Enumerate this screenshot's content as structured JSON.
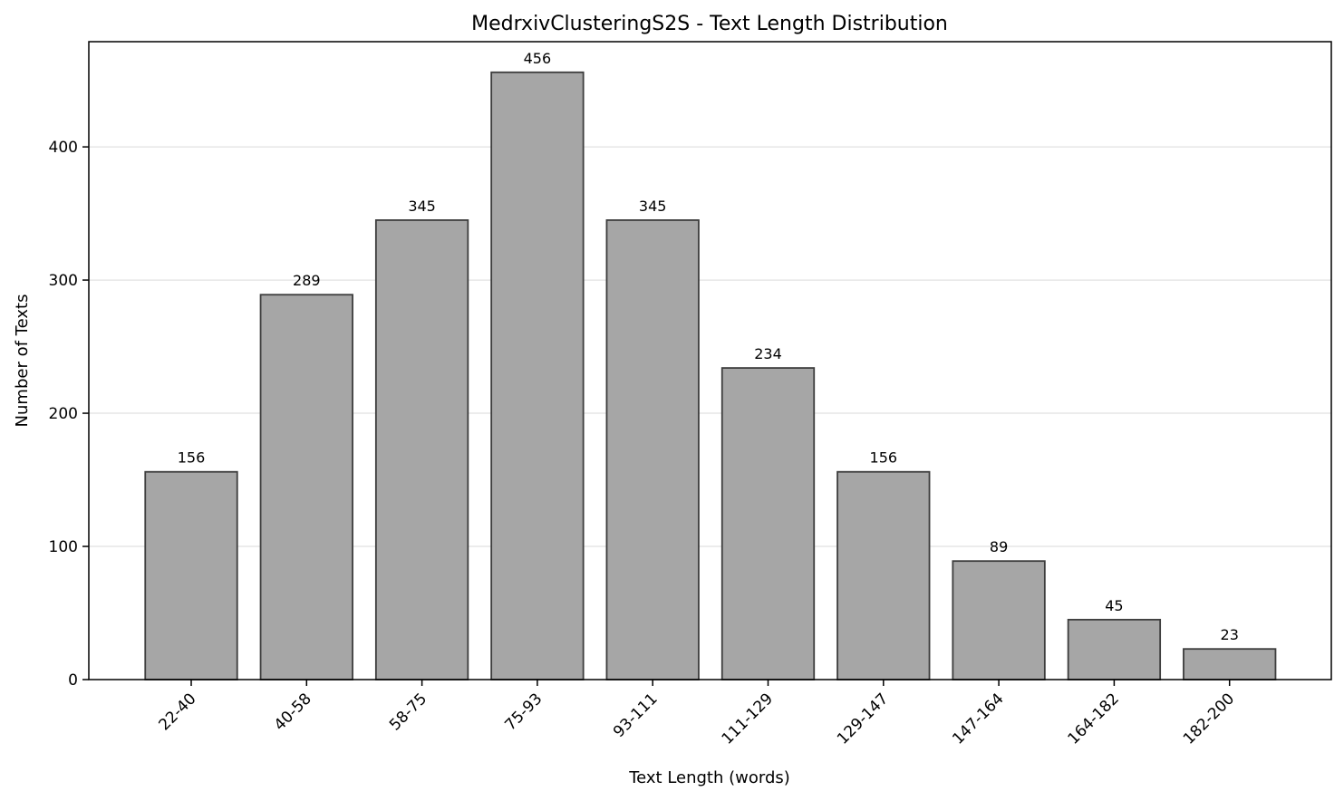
{
  "chart_data": {
    "type": "bar",
    "title": "MedrxivClusteringS2S - Text Length Distribution",
    "xlabel": "Text Length (words)",
    "ylabel": "Number of Texts",
    "categories": [
      "22-40",
      "40-58",
      "58-75",
      "75-93",
      "93-111",
      "111-129",
      "129-147",
      "147-164",
      "164-182",
      "182-200"
    ],
    "values": [
      156,
      289,
      345,
      456,
      345,
      234,
      156,
      89,
      45,
      23
    ],
    "ylim": [
      0,
      479
    ],
    "yticks": [
      0,
      100,
      200,
      300,
      400
    ],
    "grid": "horizontal",
    "bar_color": "#a6a6a6",
    "edge_color": "#3d3d3d"
  }
}
